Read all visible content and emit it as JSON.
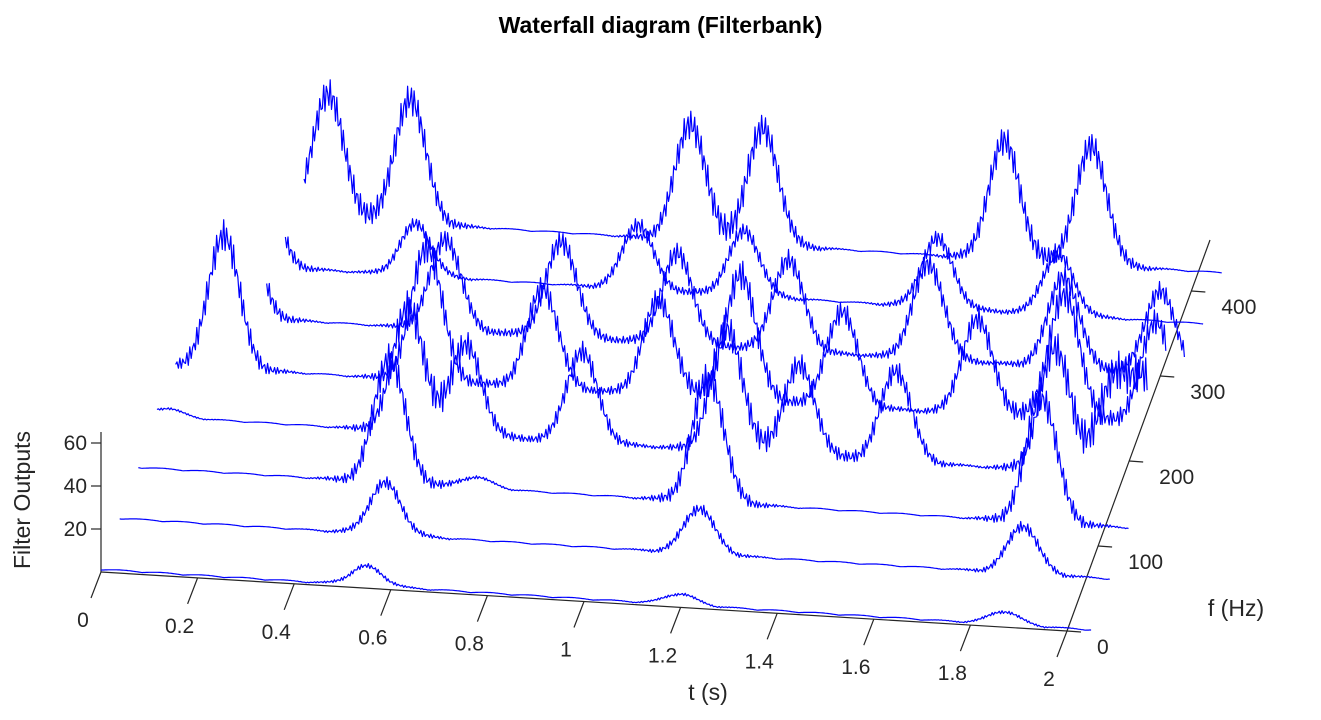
{
  "chart_data": {
    "type": "line",
    "subtype": "waterfall-3d",
    "title": "Waterfall diagram (Filterbank)",
    "xlabel": "t (s)",
    "ylabel": "f (Hz)",
    "zlabel": "Filter Outputs",
    "xlim": [
      0,
      2
    ],
    "ylim": [
      0,
      450
    ],
    "zlim": [
      0,
      70
    ],
    "xticks": [
      0,
      0.2,
      0.4,
      0.6,
      0.8,
      1,
      1.2,
      1.4,
      1.6,
      1.8,
      2
    ],
    "yticks": [
      0,
      100,
      200,
      300,
      400
    ],
    "zticks": [
      20,
      40,
      60
    ],
    "line_color": "#0000ff",
    "grid": false,
    "series_note_values_sampled_from_envelope": true,
    "series": [
      {
        "f": 0,
        "peaks": [
          [
            0.55,
            9
          ],
          [
            1.2,
            5
          ],
          [
            1.87,
            6
          ]
        ]
      },
      {
        "f": 60,
        "peaks": [
          [
            0.55,
            24
          ],
          [
            1.2,
            21
          ],
          [
            1.87,
            22
          ]
        ]
      },
      {
        "f": 120,
        "peaks": [
          [
            0.52,
            58
          ],
          [
            0.7,
            5
          ],
          [
            1.18,
            58
          ],
          [
            1.87,
            58
          ]
        ]
      },
      {
        "f": 180,
        "peaks": [
          [
            0.02,
            4
          ],
          [
            0.52,
            58
          ],
          [
            0.64,
            42
          ],
          [
            0.88,
            42
          ],
          [
            1.18,
            57
          ],
          [
            1.33,
            42
          ],
          [
            1.53,
            42
          ],
          [
            1.86,
            57
          ],
          [
            1.98,
            43
          ],
          [
            2.05,
            43
          ]
        ]
      },
      {
        "f": 240,
        "peaks": [
          [
            0.1,
            62
          ],
          [
            0.52,
            62
          ],
          [
            0.76,
            46
          ],
          [
            1.0,
            44
          ],
          [
            1.17,
            58
          ],
          [
            1.38,
            44
          ],
          [
            1.66,
            44
          ],
          [
            1.84,
            58
          ],
          [
            2.03,
            48
          ]
        ]
      },
      {
        "f": 300,
        "peaks": [
          [
            0.1,
            54
          ],
          [
            0.52,
            42
          ],
          [
            0.76,
            44
          ],
          [
            1.0,
            42
          ],
          [
            1.23,
            42
          ],
          [
            1.52,
            44
          ],
          [
            1.8,
            42
          ],
          [
            2.0,
            38
          ]
        ]
      },
      {
        "f": 360,
        "peaks": [
          [
            0.1,
            47
          ],
          [
            0.42,
            24
          ],
          [
            0.88,
            30
          ],
          [
            1.1,
            30
          ],
          [
            1.5,
            32
          ],
          [
            1.75,
            28
          ]
        ]
      },
      {
        "f": 420,
        "peaks": [
          [
            0.2,
            58
          ],
          [
            0.37,
            58
          ],
          [
            0.95,
            54
          ],
          [
            1.1,
            54
          ],
          [
            1.6,
            55
          ],
          [
            1.78,
            55
          ]
        ]
      }
    ]
  }
}
